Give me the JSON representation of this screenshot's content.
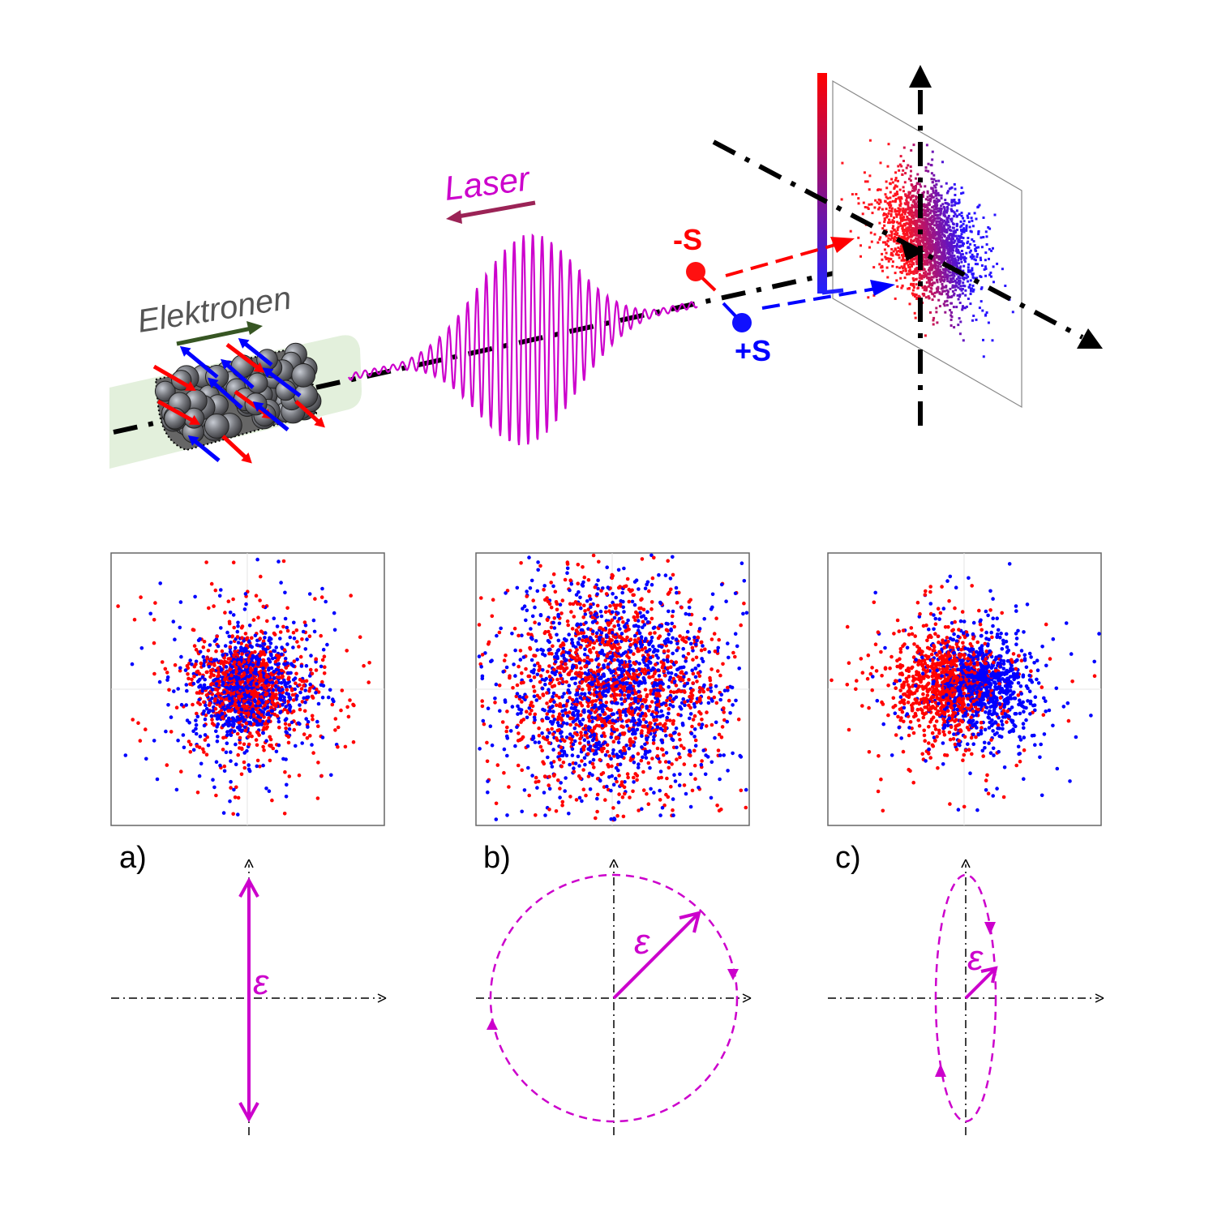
{
  "setup": {
    "electrons_label": "Elektronen",
    "laser_label": "Laser",
    "spin_minus_label": "-S",
    "spin_plus_label": "+S"
  },
  "panels": [
    {
      "label": "a)",
      "polarization": "linear",
      "field_symbol": "ε"
    },
    {
      "label": "b)",
      "polarization": "circular",
      "field_symbol": "ε"
    },
    {
      "label": "c)",
      "polarization": "elliptical",
      "field_symbol": "ε"
    }
  ],
  "colors": {
    "spin_down": "#ff0000",
    "spin_up": "#0000ff",
    "laser": "#cc00cc",
    "laser_arrow": "#9b2356",
    "electron_arrow": "#375623",
    "beam_tube": "#e3f0dc"
  }
}
